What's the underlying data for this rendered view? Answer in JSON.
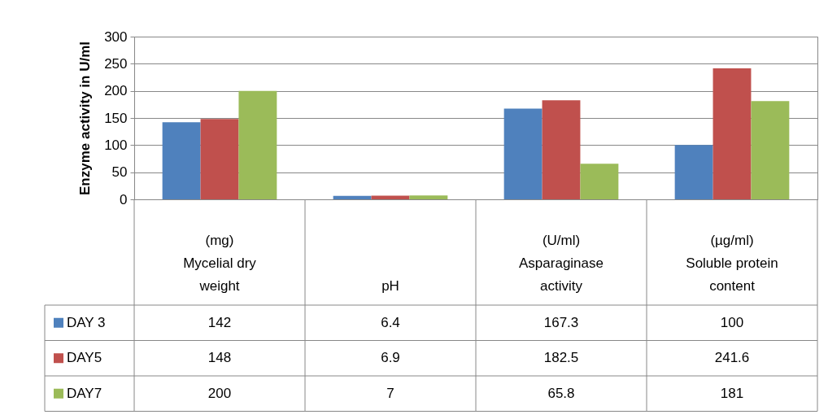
{
  "chart_data": {
    "type": "bar",
    "ylabel": "Enzyme activity in U/ml",
    "categories": [
      "(mg)\nMycelial dry\nweight",
      "pH",
      "(U/ml)\nAsparaginase\nactivity",
      "(µg/ml)\nSoluble protein\ncontent"
    ],
    "series": [
      {
        "name": "DAY 3",
        "color": "#4f81bd",
        "values": [
          142,
          6.4,
          167.3,
          100
        ]
      },
      {
        "name": "DAY5",
        "color": "#c0504d",
        "values": [
          148,
          6.9,
          182.5,
          241.6
        ]
      },
      {
        "name": "DAY7",
        "color": "#9bbb59",
        "values": [
          200,
          7,
          65.8,
          181
        ]
      }
    ],
    "ylim": [
      0,
      300
    ],
    "yticks": [
      0,
      50,
      100,
      150,
      200,
      250,
      300
    ],
    "grid": "y",
    "legend": "bottom left",
    "data_labels": true
  }
}
